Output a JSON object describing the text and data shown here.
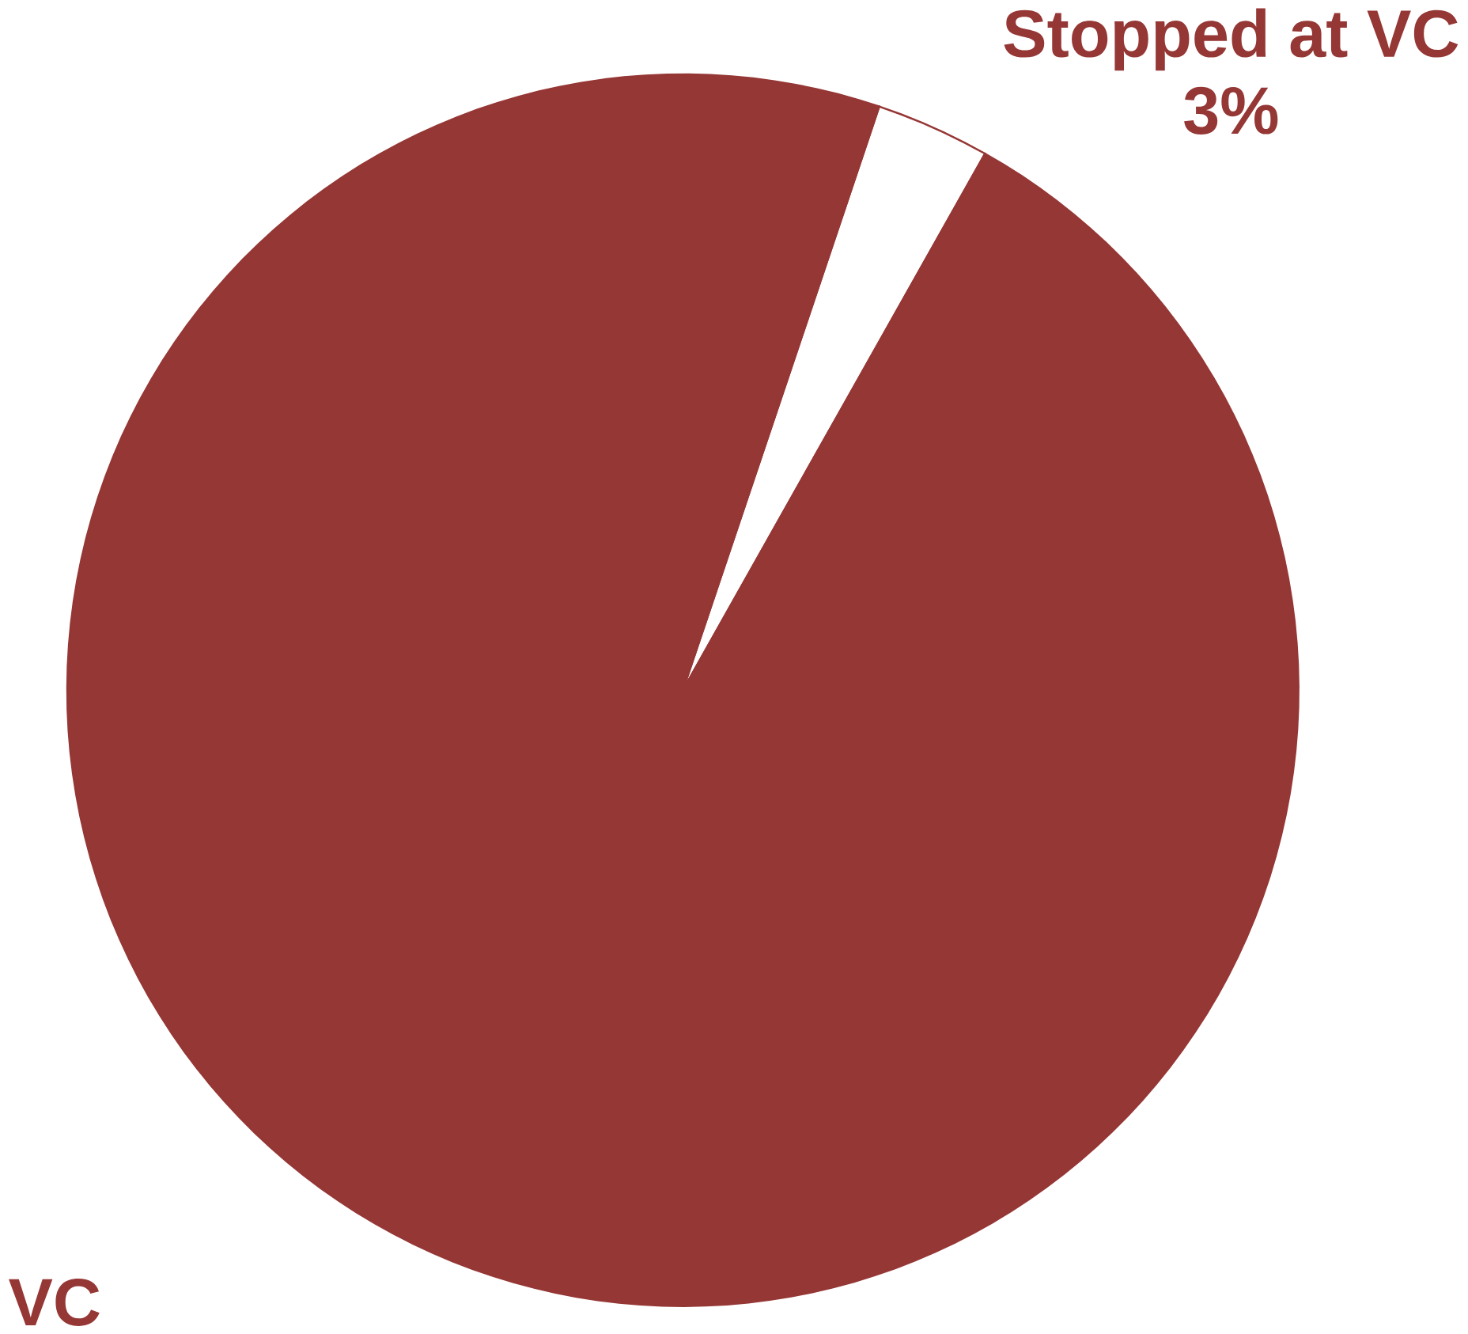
{
  "chart_data": {
    "type": "pie",
    "categories": [
      "Stopped at VC",
      "VC"
    ],
    "values": [
      3,
      97
    ],
    "colors": [
      "#ffffff",
      "#953735"
    ],
    "value_labels": [
      "3%",
      null
    ]
  }
}
